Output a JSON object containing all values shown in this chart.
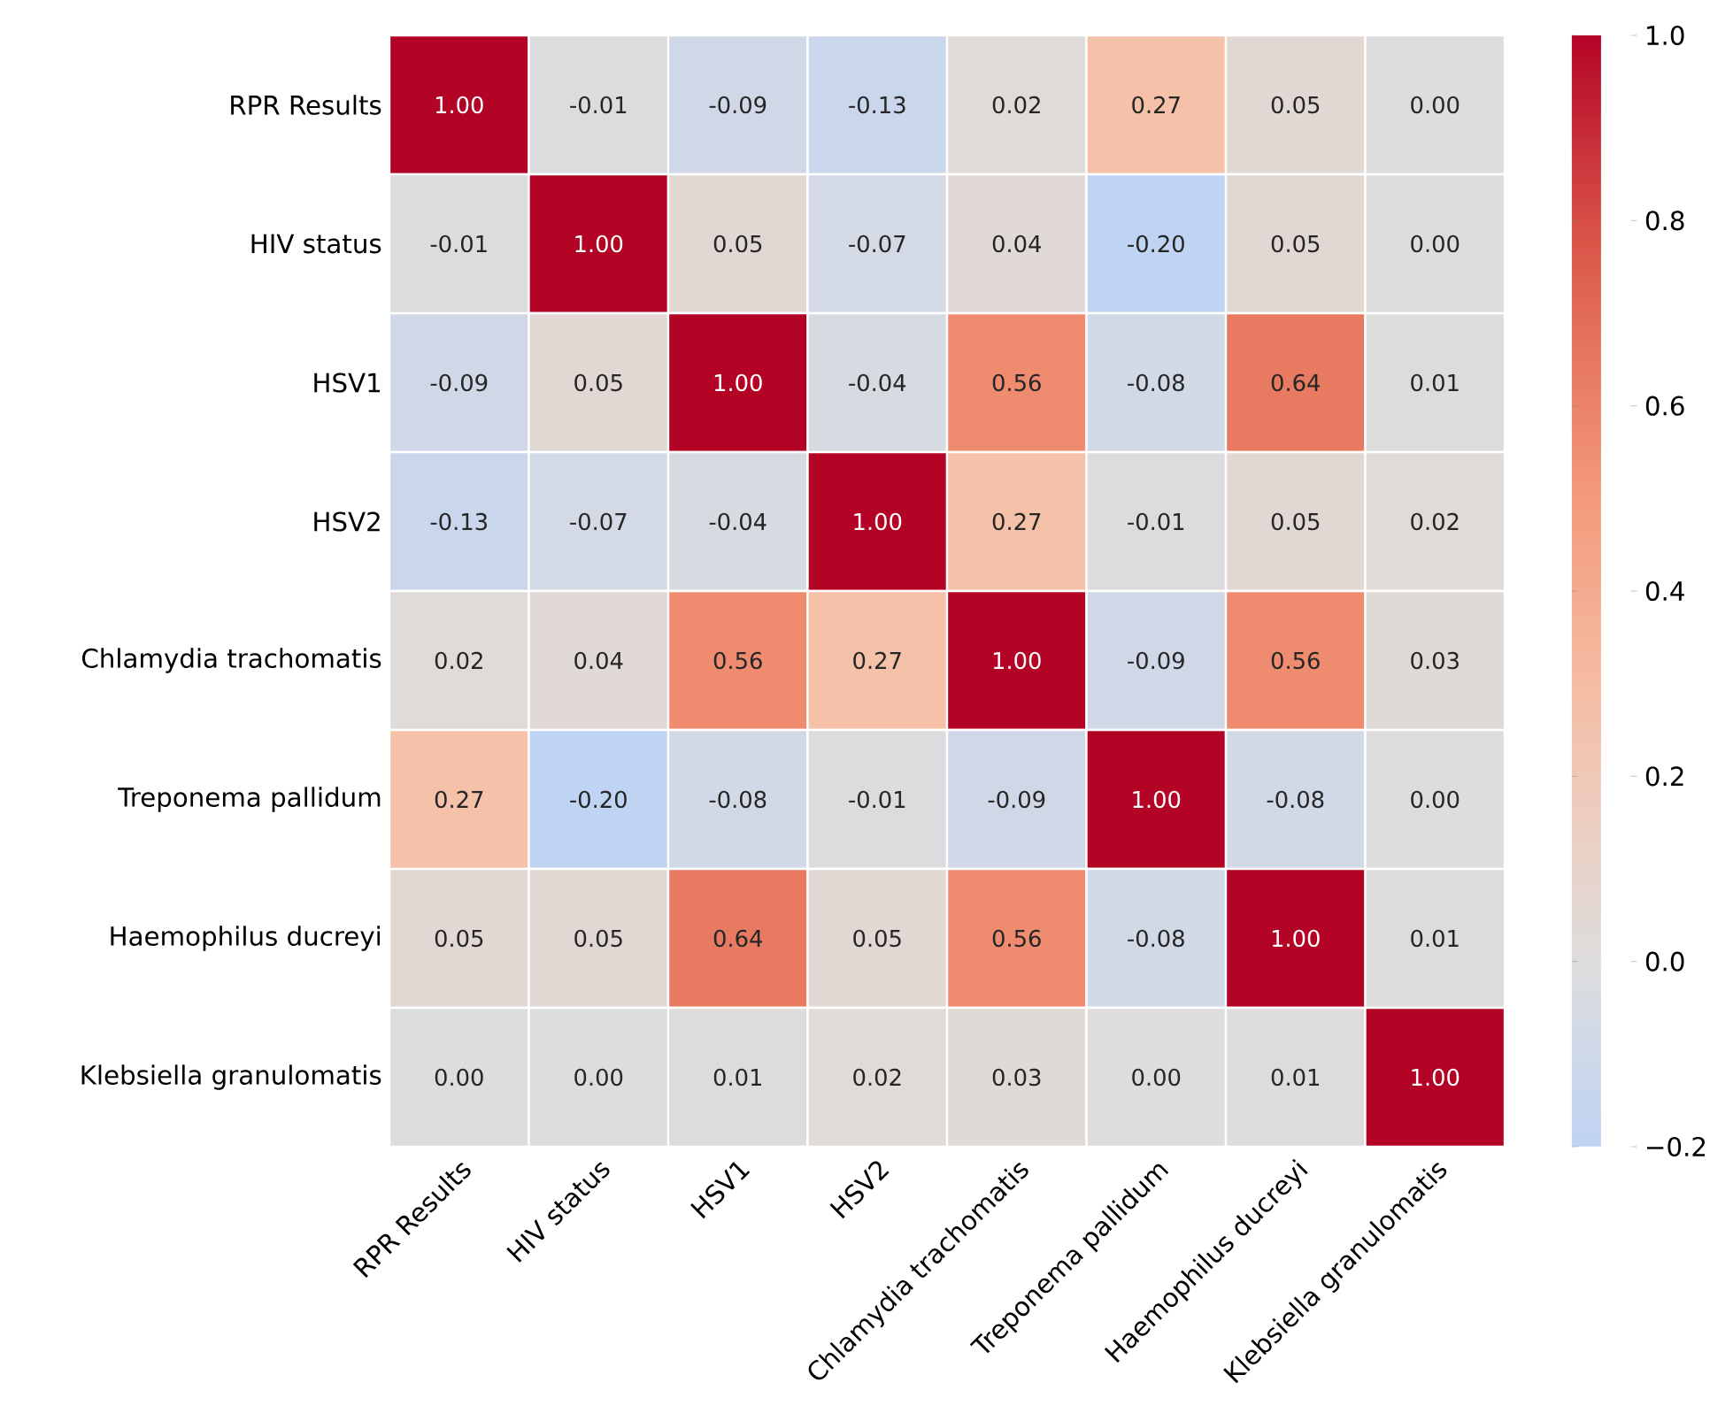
{
  "chart_data": {
    "type": "heatmap",
    "categories": [
      "RPR Results",
      "HIV status",
      "HSV1",
      "HSV2",
      "Chlamydia trachomatis",
      "Treponema pallidum",
      "Haemophilus ducreyi",
      "Klebsiella granulomatis"
    ],
    "y_categories": [
      "RPR Results",
      "HIV status",
      "HSV1",
      "HSV2",
      "Chlamydia trachomatis",
      "Treponema pallidum",
      "Haemophilus ducreyi",
      "Klebsiella granulomatis"
    ],
    "cells": [
      [
        1.0,
        -0.01,
        -0.09,
        -0.13,
        0.02,
        0.27,
        0.05,
        0.0
      ],
      [
        -0.01,
        1.0,
        0.05,
        -0.07,
        0.04,
        -0.2,
        0.05,
        0.0
      ],
      [
        -0.09,
        0.05,
        1.0,
        -0.04,
        0.56,
        -0.08,
        0.64,
        0.01
      ],
      [
        -0.13,
        -0.07,
        -0.04,
        1.0,
        0.27,
        -0.01,
        0.05,
        0.02
      ],
      [
        0.02,
        0.04,
        0.56,
        0.27,
        1.0,
        -0.09,
        0.56,
        0.03
      ],
      [
        0.27,
        -0.2,
        -0.08,
        -0.01,
        -0.09,
        1.0,
        -0.08,
        0.0
      ],
      [
        0.05,
        0.05,
        0.64,
        0.05,
        0.56,
        -0.08,
        1.0,
        0.01
      ],
      [
        0.0,
        0.0,
        0.01,
        0.02,
        0.03,
        0.0,
        0.01,
        1.0
      ]
    ],
    "cell_labels": [
      [
        "1.00",
        "-0.01",
        "-0.09",
        "-0.13",
        "0.02",
        "0.27",
        "0.05",
        "0.00"
      ],
      [
        "-0.01",
        "1.00",
        "0.05",
        "-0.07",
        "0.04",
        "-0.20",
        "0.05",
        "0.00"
      ],
      [
        "-0.09",
        "0.05",
        "1.00",
        "-0.04",
        "0.56",
        "-0.08",
        "0.64",
        "0.01"
      ],
      [
        "-0.13",
        "-0.07",
        "-0.04",
        "1.00",
        "0.27",
        "-0.01",
        "0.05",
        "0.02"
      ],
      [
        "0.02",
        "0.04",
        "0.56",
        "0.27",
        "1.00",
        "-0.09",
        "0.56",
        "0.03"
      ],
      [
        "0.27",
        "-0.20",
        "-0.08",
        "-0.01",
        "-0.09",
        "1.00",
        "-0.08",
        "0.00"
      ],
      [
        "0.05",
        "0.05",
        "0.64",
        "0.05",
        "0.56",
        "-0.08",
        "1.00",
        "0.01"
      ],
      [
        "0.00",
        "0.00",
        "0.01",
        "0.02",
        "0.03",
        "0.00",
        "0.01",
        "1.00"
      ]
    ],
    "clim": [
      -0.2,
      1.0
    ],
    "cticks": [
      {
        "value": -0.2,
        "label": "−0.2"
      },
      {
        "value": 0.0,
        "label": "0.0"
      },
      {
        "value": 0.2,
        "label": "0.2"
      },
      {
        "value": 0.4,
        "label": "0.4"
      },
      {
        "value": 0.6,
        "label": "0.6"
      },
      {
        "value": 0.8,
        "label": "0.8"
      },
      {
        "value": 1.0,
        "label": "1.0"
      }
    ]
  }
}
